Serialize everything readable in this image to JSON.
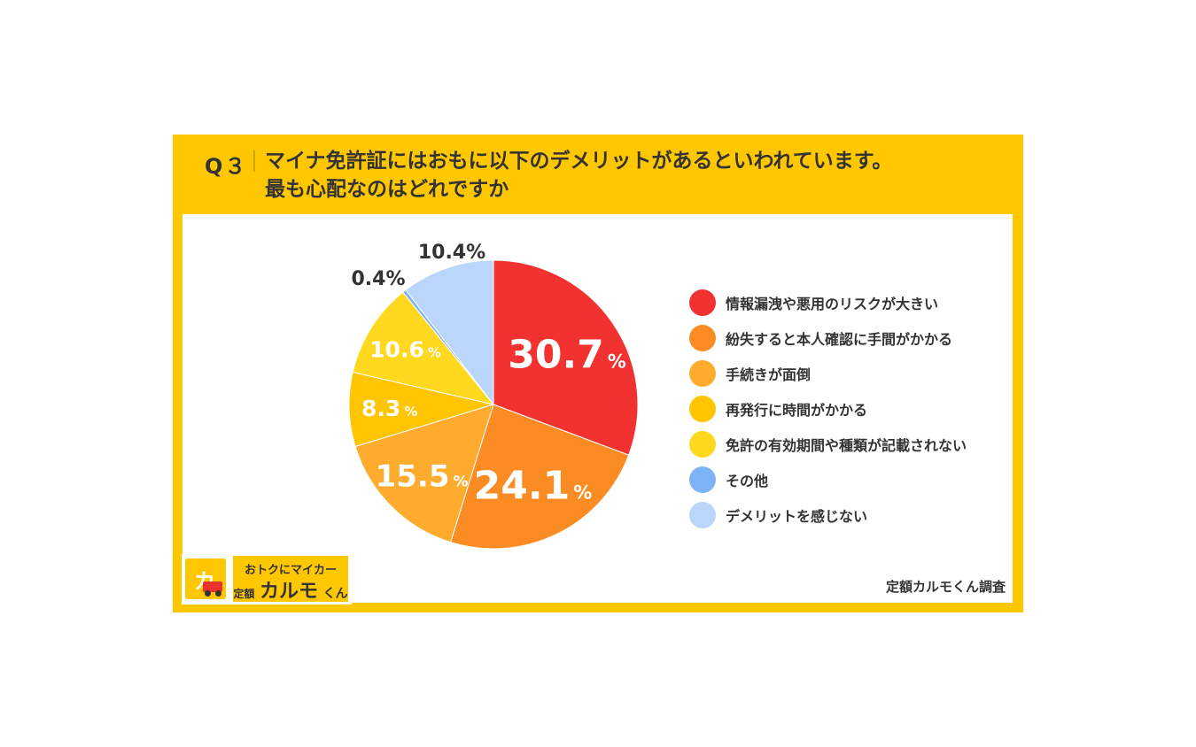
{
  "header": {
    "q_label": "Q３",
    "question_line1": "マイナ免許証にはおもに以下のデメリットがあるといわれています。",
    "question_line2": "最も心配なのはどれですか"
  },
  "chart_data": {
    "type": "pie",
    "unit": "%",
    "slices": [
      {
        "label": "情報漏洩や悪用のリスクが大きい",
        "value": 30.7,
        "display": "30.7",
        "color": "#F23131",
        "label_style": "inside-large"
      },
      {
        "label": "紛失すると本人確認に手間がかかる",
        "value": 24.1,
        "display": "24.1",
        "color": "#FB8C23",
        "label_style": "inside-large"
      },
      {
        "label": "手続きが面倒",
        "value": 15.5,
        "display": "15.5",
        "color": "#FFAB2E",
        "label_style": "inside-medium"
      },
      {
        "label": "再発行に時間がかかる",
        "value": 8.3,
        "display": "8.3",
        "color": "#FFC500",
        "label_style": "inside-small"
      },
      {
        "label": "免許の有効期間や種類が記載されない",
        "value": 10.6,
        "display": "10.6",
        "color": "#FFD81F",
        "label_style": "inside-small"
      },
      {
        "label": "その他",
        "value": 0.4,
        "display": "0.4%",
        "color": "#7EB3F5",
        "label_style": "outside"
      },
      {
        "label": "デメリットを感じない",
        "value": 10.4,
        "display": "10.4%",
        "color": "#BAD7FB",
        "label_style": "outside"
      }
    ]
  },
  "source": "定額カルモくん調査",
  "logo": {
    "mark": "カ",
    "top": "おトクにマイカー",
    "prefix": "定額",
    "name": "カルモ",
    "suffix": "くん"
  }
}
